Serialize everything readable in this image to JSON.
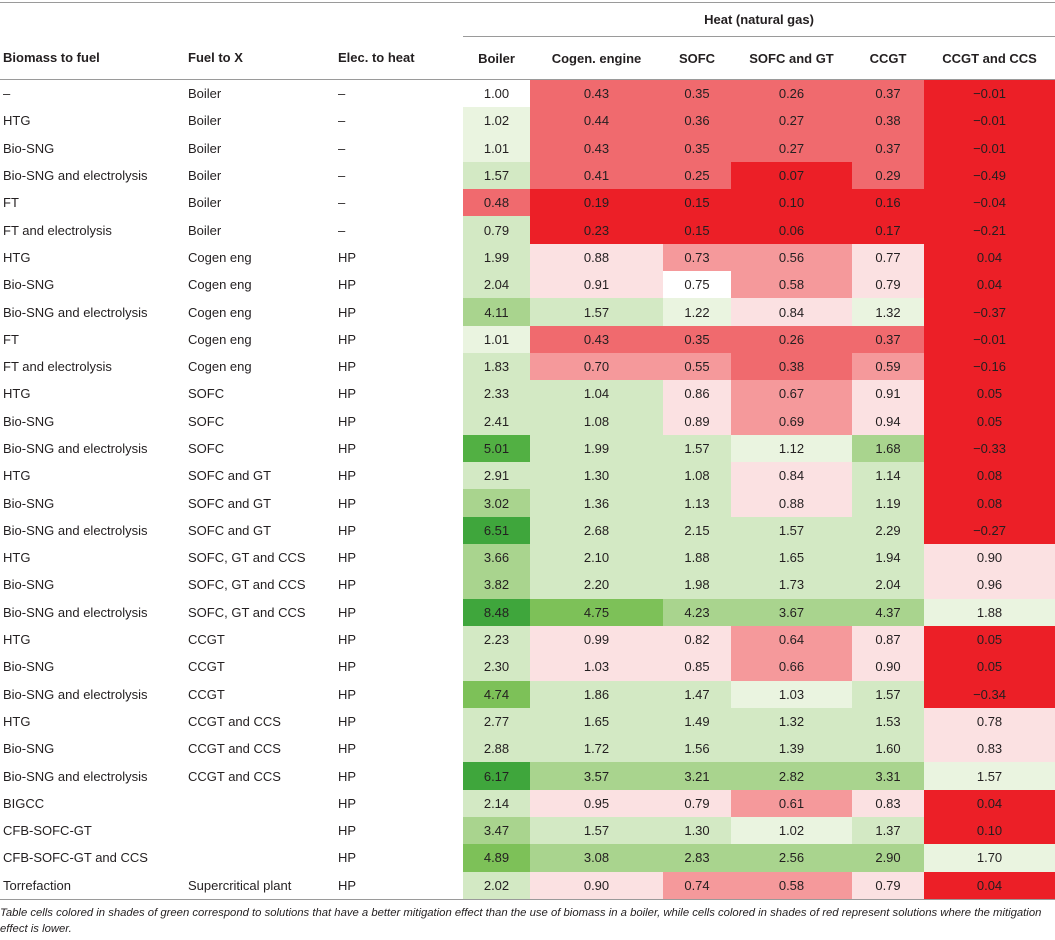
{
  "group_header": "Heat (natural gas)",
  "columns": [
    "Biomass to fuel",
    "Fuel to X",
    "Elec. to heat",
    "Boiler",
    "Cogen. engine",
    "SOFC",
    "SOFC and GT",
    "CCGT",
    "CCGT and CCS"
  ],
  "rows": [
    {
      "biomass": "–",
      "fuel": "Boiler",
      "elec": "–",
      "values": [
        "1.00",
        "0.43",
        "0.35",
        "0.26",
        "0.37",
        "−0.01"
      ]
    },
    {
      "biomass": "HTG",
      "fuel": "Boiler",
      "elec": "–",
      "values": [
        "1.02",
        "0.44",
        "0.36",
        "0.27",
        "0.38",
        "−0.01"
      ]
    },
    {
      "biomass": "Bio-SNG",
      "fuel": "Boiler",
      "elec": "–",
      "values": [
        "1.01",
        "0.43",
        "0.35",
        "0.27",
        "0.37",
        "−0.01"
      ]
    },
    {
      "biomass": "Bio-SNG and electrolysis",
      "fuel": "Boiler",
      "elec": "–",
      "values": [
        "1.57",
        "0.41",
        "0.25",
        "0.07",
        "0.29",
        "−0.49"
      ]
    },
    {
      "biomass": "FT",
      "fuel": "Boiler",
      "elec": "–",
      "values": [
        "0.48",
        "0.19",
        "0.15",
        "0.10",
        "0.16",
        "−0.04"
      ]
    },
    {
      "biomass": "FT and electrolysis",
      "fuel": "Boiler",
      "elec": "–",
      "values": [
        "0.79",
        "0.23",
        "0.15",
        "0.06",
        "0.17",
        "−0.21"
      ]
    },
    {
      "biomass": "HTG",
      "fuel": "Cogen eng",
      "elec": "HP",
      "values": [
        "1.99",
        "0.88",
        "0.73",
        "0.56",
        "0.77",
        "0.04"
      ]
    },
    {
      "biomass": "Bio-SNG",
      "fuel": "Cogen eng",
      "elec": "HP",
      "values": [
        "2.04",
        "0.91",
        "0.75",
        "0.58",
        "0.79",
        "0.04"
      ]
    },
    {
      "biomass": "Bio-SNG and electrolysis",
      "fuel": "Cogen eng",
      "elec": "HP",
      "values": [
        "4.11",
        "1.57",
        "1.22",
        "0.84",
        "1.32",
        "−0.37"
      ]
    },
    {
      "biomass": "FT",
      "fuel": "Cogen eng",
      "elec": "HP",
      "values": [
        "1.01",
        "0.43",
        "0.35",
        "0.26",
        "0.37",
        "−0.01"
      ]
    },
    {
      "biomass": "FT and electrolysis",
      "fuel": "Cogen eng",
      "elec": "HP",
      "values": [
        "1.83",
        "0.70",
        "0.55",
        "0.38",
        "0.59",
        "−0.16"
      ]
    },
    {
      "biomass": "HTG",
      "fuel": "SOFC",
      "elec": "HP",
      "values": [
        "2.33",
        "1.04",
        "0.86",
        "0.67",
        "0.91",
        "0.05"
      ]
    },
    {
      "biomass": "Bio-SNG",
      "fuel": "SOFC",
      "elec": "HP",
      "values": [
        "2.41",
        "1.08",
        "0.89",
        "0.69",
        "0.94",
        "0.05"
      ]
    },
    {
      "biomass": "Bio-SNG and electrolysis",
      "fuel": "SOFC",
      "elec": "HP",
      "values": [
        "5.01",
        "1.99",
        "1.57",
        "1.12",
        "1.68",
        "−0.33"
      ]
    },
    {
      "biomass": "HTG",
      "fuel": "SOFC and GT",
      "elec": "HP",
      "values": [
        "2.91",
        "1.30",
        "1.08",
        "0.84",
        "1.14",
        "0.08"
      ]
    },
    {
      "biomass": "Bio-SNG",
      "fuel": "SOFC and GT",
      "elec": "HP",
      "values": [
        "3.02",
        "1.36",
        "1.13",
        "0.88",
        "1.19",
        "0.08"
      ]
    },
    {
      "biomass": "Bio-SNG and electrolysis",
      "fuel": "SOFC and GT",
      "elec": "HP",
      "values": [
        "6.51",
        "2.68",
        "2.15",
        "1.57",
        "2.29",
        "−0.27"
      ]
    },
    {
      "biomass": "HTG",
      "fuel": "SOFC, GT and CCS",
      "elec": "HP",
      "values": [
        "3.66",
        "2.10",
        "1.88",
        "1.65",
        "1.94",
        "0.90"
      ]
    },
    {
      "biomass": "Bio-SNG",
      "fuel": "SOFC, GT and CCS",
      "elec": "HP",
      "values": [
        "3.82",
        "2.20",
        "1.98",
        "1.73",
        "2.04",
        "0.96"
      ]
    },
    {
      "biomass": "Bio-SNG and electrolysis",
      "fuel": "SOFC, GT and CCS",
      "elec": "HP",
      "values": [
        "8.48",
        "4.75",
        "4.23",
        "3.67",
        "4.37",
        "1.88"
      ]
    },
    {
      "biomass": "HTG",
      "fuel": "CCGT",
      "elec": "HP",
      "values": [
        "2.23",
        "0.99",
        "0.82",
        "0.64",
        "0.87",
        "0.05"
      ]
    },
    {
      "biomass": "Bio-SNG",
      "fuel": "CCGT",
      "elec": "HP",
      "values": [
        "2.30",
        "1.03",
        "0.85",
        "0.66",
        "0.90",
        "0.05"
      ]
    },
    {
      "biomass": "Bio-SNG and electrolysis",
      "fuel": "CCGT",
      "elec": "HP",
      "values": [
        "4.74",
        "1.86",
        "1.47",
        "1.03",
        "1.57",
        "−0.34"
      ]
    },
    {
      "biomass": "HTG",
      "fuel": "CCGT and CCS",
      "elec": "HP",
      "values": [
        "2.77",
        "1.65",
        "1.49",
        "1.32",
        "1.53",
        "0.78"
      ]
    },
    {
      "biomass": "Bio-SNG",
      "fuel": "CCGT and CCS",
      "elec": "HP",
      "values": [
        "2.88",
        "1.72",
        "1.56",
        "1.39",
        "1.60",
        "0.83"
      ]
    },
    {
      "biomass": "Bio-SNG and electrolysis",
      "fuel": "CCGT and CCS",
      "elec": "HP",
      "values": [
        "6.17",
        "3.57",
        "3.21",
        "2.82",
        "3.31",
        "1.57"
      ]
    },
    {
      "biomass": "BIGCC",
      "fuel": "",
      "elec": "HP",
      "values": [
        "2.14",
        "0.95",
        "0.79",
        "0.61",
        "0.83",
        "0.04"
      ]
    },
    {
      "biomass": "CFB-SOFC-GT",
      "fuel": "",
      "elec": "HP",
      "values": [
        "3.47",
        "1.57",
        "1.30",
        "1.02",
        "1.37",
        "0.10"
      ]
    },
    {
      "biomass": "CFB-SOFC-GT and CCS",
      "fuel": "",
      "elec": "HP",
      "values": [
        "4.89",
        "3.08",
        "2.83",
        "2.56",
        "2.90",
        "1.70"
      ]
    },
    {
      "biomass": "Torrefaction",
      "fuel": "Supercritical plant",
      "elec": "HP",
      "values": [
        "2.02",
        "0.90",
        "0.74",
        "0.58",
        "0.79",
        "0.04"
      ]
    }
  ],
  "cell_colors": {
    "red_strong": "#ec1f27",
    "red_mid": "#f06a6e",
    "red_soft": "#f5999b",
    "pink": "#fbe1e2",
    "white": "#ffffff",
    "green_pale": "#eaf4e0",
    "green_light": "#d3e9c4",
    "green_mid": "#a9d48e",
    "green_strong": "#7dc158",
    "green_dark": "#52b043",
    "green_darkest": "#3fa63c"
  },
  "footnote": "Table cells colored in shades of green correspond to solutions that have a better mitigation effect than the use of biomass in a boiler, while cells colored in shades of red represent solutions where the mitigation effect is lower."
}
